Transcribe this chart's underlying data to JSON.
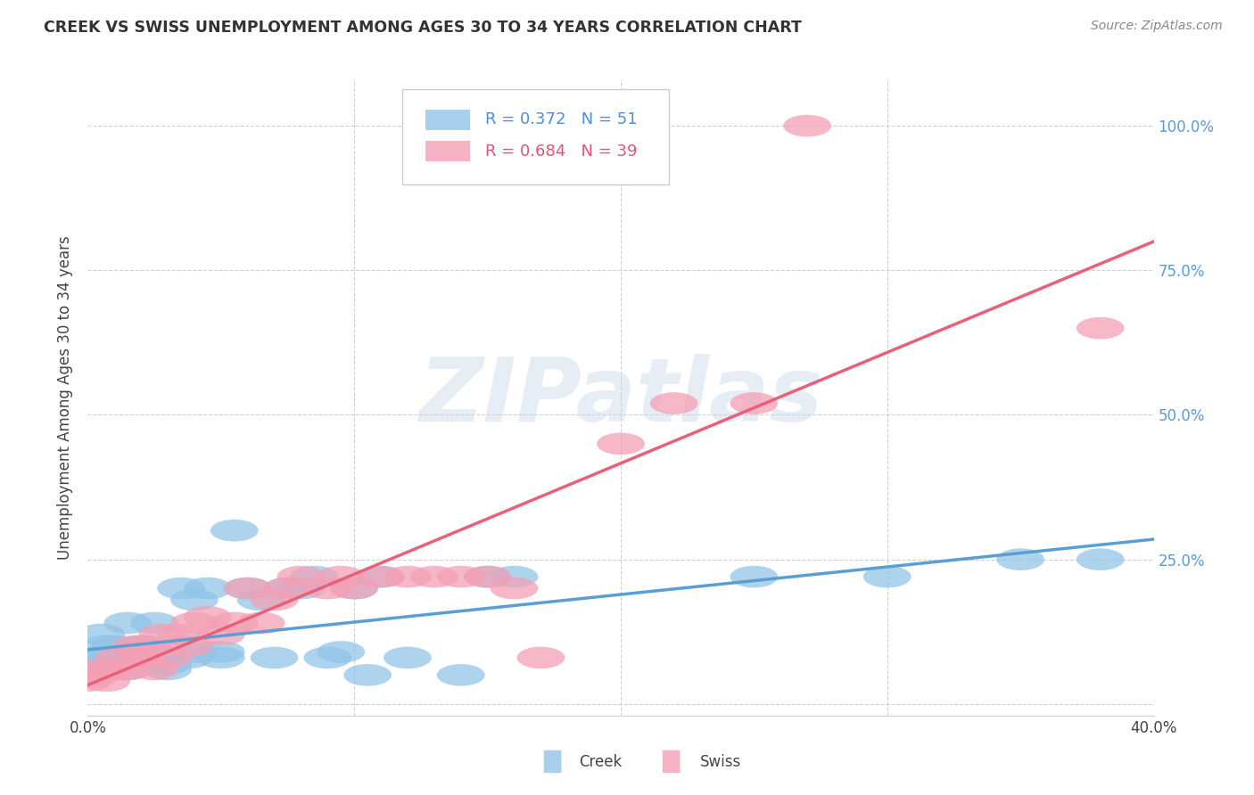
{
  "title": "CREEK VS SWISS UNEMPLOYMENT AMONG AGES 30 TO 34 YEARS CORRELATION CHART",
  "source": "Source: ZipAtlas.com",
  "ylabel": "Unemployment Among Ages 30 to 34 years",
  "xlim": [
    0.0,
    0.4
  ],
  "ylim": [
    -0.02,
    1.08
  ],
  "ytick_vals": [
    0.0,
    0.25,
    0.5,
    0.75,
    1.0
  ],
  "ytick_labels": [
    "",
    "25.0%",
    "50.0%",
    "75.0%",
    "100.0%"
  ],
  "creek_R": 0.372,
  "creek_N": 51,
  "swiss_R": 0.684,
  "swiss_N": 39,
  "creek_color": "#92c5e8",
  "swiss_color": "#f4a0b5",
  "creek_line_color": "#5a9fd4",
  "swiss_line_color": "#e8607a",
  "watermark": "ZIPatlas",
  "background_color": "#ffffff",
  "creek_x": [
    0.0,
    0.002,
    0.003,
    0.005,
    0.005,
    0.007,
    0.008,
    0.01,
    0.01,
    0.01,
    0.012,
    0.013,
    0.015,
    0.015,
    0.018,
    0.02,
    0.02,
    0.022,
    0.023,
    0.025,
    0.025,
    0.027,
    0.03,
    0.03,
    0.035,
    0.038,
    0.04,
    0.04,
    0.045,
    0.05,
    0.05,
    0.055,
    0.06,
    0.065,
    0.07,
    0.075,
    0.08,
    0.085,
    0.09,
    0.095,
    0.1,
    0.105,
    0.11,
    0.12,
    0.14,
    0.15,
    0.16,
    0.25,
    0.3,
    0.35,
    0.38
  ],
  "creek_y": [
    0.05,
    0.08,
    0.06,
    0.12,
    0.08,
    0.1,
    0.07,
    0.08,
    0.1,
    0.06,
    0.09,
    0.07,
    0.14,
    0.06,
    0.08,
    0.1,
    0.07,
    0.09,
    0.07,
    0.08,
    0.14,
    0.08,
    0.06,
    0.07,
    0.2,
    0.08,
    0.18,
    0.09,
    0.2,
    0.08,
    0.09,
    0.3,
    0.2,
    0.18,
    0.08,
    0.2,
    0.2,
    0.22,
    0.08,
    0.09,
    0.2,
    0.05,
    0.22,
    0.08,
    0.05,
    0.22,
    0.22,
    0.22,
    0.22,
    0.25,
    0.25
  ],
  "swiss_x": [
    0.0,
    0.003,
    0.005,
    0.007,
    0.01,
    0.012,
    0.015,
    0.018,
    0.02,
    0.022,
    0.025,
    0.028,
    0.03,
    0.035,
    0.038,
    0.04,
    0.045,
    0.05,
    0.055,
    0.06,
    0.065,
    0.07,
    0.075,
    0.08,
    0.09,
    0.095,
    0.1,
    0.11,
    0.12,
    0.13,
    0.14,
    0.15,
    0.16,
    0.17,
    0.2,
    0.22,
    0.25,
    0.27,
    0.38
  ],
  "swiss_y": [
    0.04,
    0.05,
    0.06,
    0.04,
    0.06,
    0.08,
    0.06,
    0.1,
    0.08,
    0.1,
    0.06,
    0.12,
    0.08,
    0.12,
    0.1,
    0.14,
    0.15,
    0.12,
    0.14,
    0.2,
    0.14,
    0.18,
    0.2,
    0.22,
    0.2,
    0.22,
    0.2,
    0.22,
    0.22,
    0.22,
    0.22,
    0.22,
    0.2,
    0.08,
    0.45,
    0.52,
    0.52,
    1.0,
    0.65
  ]
}
